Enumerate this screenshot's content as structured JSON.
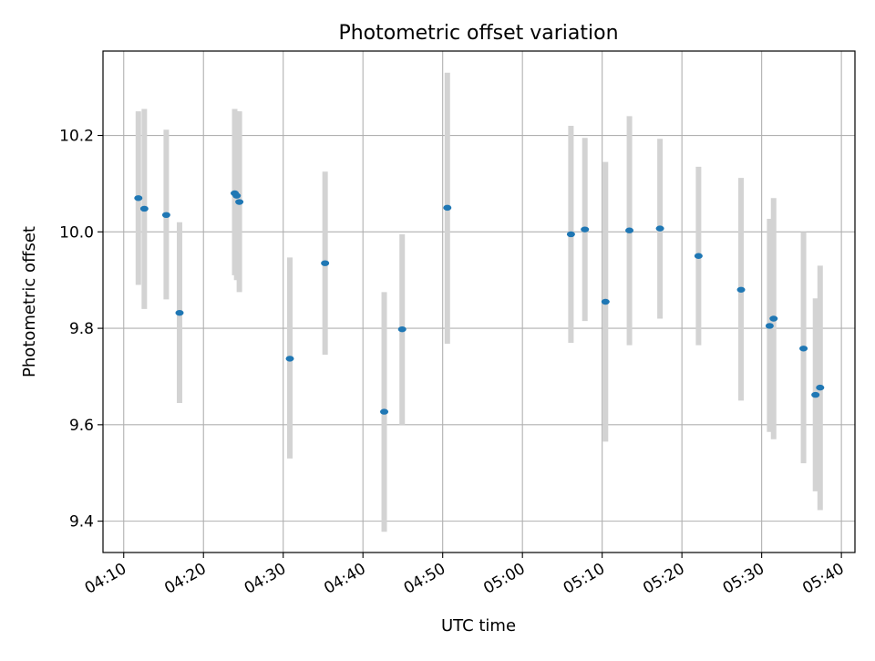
{
  "chart_data": {
    "type": "scatter",
    "title": "Photometric offset variation",
    "xlabel": "UTC time",
    "ylabel": "Photometric offset",
    "x_ticks": [
      "04:10",
      "04:20",
      "04:30",
      "04:40",
      "04:50",
      "05:00",
      "05:10",
      "05:20",
      "05:30",
      "05:40"
    ],
    "y_ticks": [
      "9.4",
      "9.6",
      "9.8",
      "10.0",
      "10.2"
    ],
    "xlim": [
      "04:07:24",
      "05:41:42"
    ],
    "ylim": [
      9.335,
      10.375
    ],
    "grid": true,
    "colors": {
      "points": "#1f77b4",
      "errorbars": "#d3d3d3",
      "grid": "#b0b0b0"
    },
    "points": [
      {
        "time": "04:11:50",
        "y": 10.07,
        "ymin": 9.89,
        "ymax": 10.25
      },
      {
        "time": "04:12:35",
        "y": 10.048,
        "ymin": 9.84,
        "ymax": 10.255
      },
      {
        "time": "04:15:20",
        "y": 10.035,
        "ymin": 9.86,
        "ymax": 10.212
      },
      {
        "time": "04:17:00",
        "y": 9.832,
        "ymin": 9.645,
        "ymax": 10.02
      },
      {
        "time": "04:23:55",
        "y": 10.08,
        "ymin": 9.91,
        "ymax": 10.255
      },
      {
        "time": "04:24:10",
        "y": 10.075,
        "ymin": 9.9,
        "ymax": 10.25
      },
      {
        "time": "04:24:30",
        "y": 10.062,
        "ymin": 9.875,
        "ymax": 10.25
      },
      {
        "time": "04:30:50",
        "y": 9.737,
        "ymin": 9.53,
        "ymax": 9.947
      },
      {
        "time": "04:35:15",
        "y": 9.935,
        "ymin": 9.745,
        "ymax": 10.125
      },
      {
        "time": "04:42:40",
        "y": 9.627,
        "ymin": 9.378,
        "ymax": 9.875
      },
      {
        "time": "04:44:55",
        "y": 9.798,
        "ymin": 9.6,
        "ymax": 9.995
      },
      {
        "time": "04:50:35",
        "y": 10.05,
        "ymin": 9.768,
        "ymax": 10.33
      },
      {
        "time": "05:06:05",
        "y": 9.995,
        "ymin": 9.77,
        "ymax": 10.22
      },
      {
        "time": "05:07:50",
        "y": 10.005,
        "ymin": 9.815,
        "ymax": 10.195
      },
      {
        "time": "05:10:25",
        "y": 9.855,
        "ymin": 9.565,
        "ymax": 10.145
      },
      {
        "time": "05:13:25",
        "y": 10.003,
        "ymin": 9.765,
        "ymax": 10.24
      },
      {
        "time": "05:17:15",
        "y": 10.007,
        "ymin": 9.82,
        "ymax": 10.193
      },
      {
        "time": "05:22:05",
        "y": 9.95,
        "ymin": 9.765,
        "ymax": 10.135
      },
      {
        "time": "05:27:25",
        "y": 9.88,
        "ymin": 9.65,
        "ymax": 10.112
      },
      {
        "time": "05:31:00",
        "y": 9.805,
        "ymin": 9.585,
        "ymax": 10.027
      },
      {
        "time": "05:31:30",
        "y": 9.82,
        "ymin": 9.57,
        "ymax": 10.07
      },
      {
        "time": "05:35:15",
        "y": 9.758,
        "ymin": 9.52,
        "ymax": 10.0
      },
      {
        "time": "05:36:45",
        "y": 9.662,
        "ymin": 9.462,
        "ymax": 9.862
      },
      {
        "time": "05:37:20",
        "y": 9.677,
        "ymin": 9.423,
        "ymax": 9.93
      }
    ]
  }
}
